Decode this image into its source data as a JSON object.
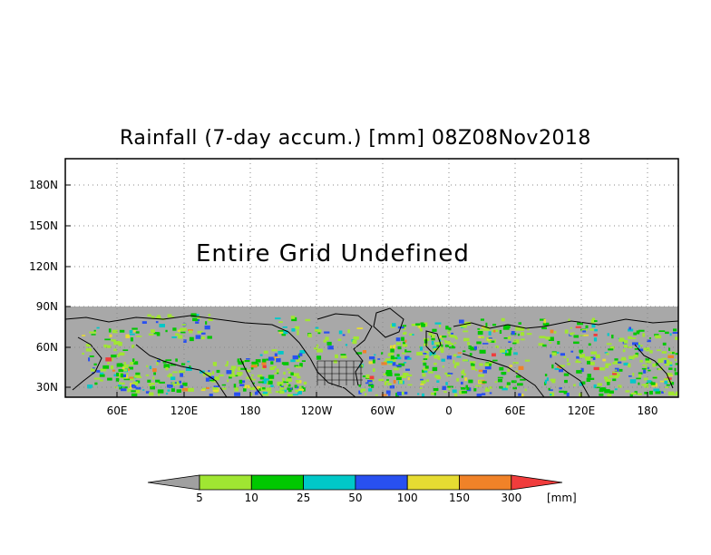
{
  "title": "Rainfall (7-day accum.) [mm] 08Z08Nov2018",
  "overlay_text": "Entire Grid Undefined",
  "lat_labels": [
    "180N",
    "150N",
    "120N",
    "90N",
    "60N",
    "30N"
  ],
  "lon_labels": [
    "60E",
    "120E",
    "180",
    "120W",
    "60W",
    "0",
    "60E",
    "120E",
    "180"
  ],
  "colorbar": {
    "unit_label": "[mm]",
    "thresholds": [
      "5",
      "10",
      "25",
      "50",
      "100",
      "150",
      "300"
    ],
    "colors": [
      "#a0a0a0",
      "#a0e632",
      "#00c800",
      "#00c8c8",
      "#2850f0",
      "#e6dc32",
      "#f08228",
      "#f03c3c"
    ]
  },
  "land_color": "#a8a8a8",
  "background_color": "#ffffff"
}
